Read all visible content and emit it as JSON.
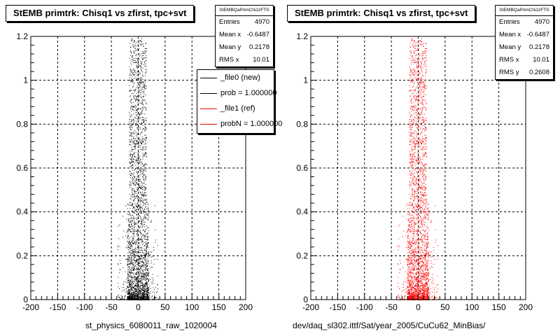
{
  "chart_data": [
    {
      "type": "scatter",
      "title": "StEMB primtrk: Chisq1 vs zfirst, tpc+svt",
      "xlabel": "st_physics_6080011_raw_1020004",
      "ylabel": "",
      "xlim": [
        -200,
        200
      ],
      "ylim": [
        0,
        1.2
      ],
      "x_ticks": [
        "-200",
        "-150",
        "-100",
        "-50",
        "0",
        "50",
        "100",
        "150",
        "200"
      ],
      "y_ticks": [
        "0",
        "0.2",
        "0.4",
        "0.6",
        "0.8",
        "1",
        "1.2"
      ],
      "grid": true,
      "marker_color": "#000000",
      "distribution": {
        "x_center": -1,
        "x_core_halfwidth": 20,
        "x_tail_halfwidth": 38,
        "density_peak": "y near 0"
      },
      "stats": {
        "name": "StEMBQaPrimChi1zFTS",
        "rows": [
          {
            "label": "Entries",
            "value": "4970"
          },
          {
            "label": "Mean x",
            "value": "-0.6487"
          },
          {
            "label": "Mean y",
            "value": "0.2178"
          },
          {
            "label": "RMS x",
            "value": "10.01"
          }
        ]
      },
      "legend": {
        "placement": "top-right",
        "items": [
          {
            "label": "_file0 (new)",
            "color": "#000000"
          },
          {
            "label": "prob = 1.000000",
            "color": "#000000"
          },
          {
            "label": "_file1 (ref)",
            "color": "#ff0000"
          },
          {
            "label": "probN = 1.000000",
            "color": "#ff0000"
          }
        ]
      }
    },
    {
      "type": "scatter",
      "title": "StEMB primtrk: Chisq1 vs zfirst, tpc+svt",
      "xlabel": "dev/daq_sl302.ittf/Sat/year_2005/CuCu62_MinBias/",
      "ylabel": "",
      "xlim": [
        -200,
        200
      ],
      "ylim": [
        0,
        1.2
      ],
      "x_ticks": [
        "-200",
        "-150",
        "-100",
        "-50",
        "0",
        "50",
        "100",
        "150",
        "200"
      ],
      "y_ticks": [
        "0",
        "0.2",
        "0.4",
        "0.6",
        "0.8",
        "1",
        "1.2"
      ],
      "grid": true,
      "marker_color": "#ff0000",
      "distribution": {
        "x_center": -1,
        "x_core_halfwidth": 20,
        "x_tail_halfwidth": 38,
        "density_peak": "y near 0"
      },
      "stats": {
        "name": "StEMBQaPrimChi1zFTS",
        "rows": [
          {
            "label": "Entries",
            "value": "4970"
          },
          {
            "label": "Mean x",
            "value": "-0.6487"
          },
          {
            "label": "Mean y",
            "value": "0.2178"
          },
          {
            "label": "RMS x",
            "value": "10.01"
          },
          {
            "label": "RMS y",
            "value": "0.2608"
          }
        ]
      }
    }
  ]
}
